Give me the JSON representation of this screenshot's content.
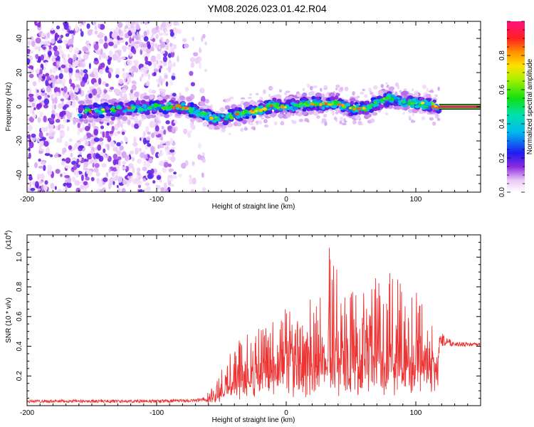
{
  "chart_data": [
    {
      "type": "heatmap",
      "title": "YM08.2026.023.01.42.R04",
      "xlabel": "Height of straight line (km)",
      "ylabel": "Frequency (Hz)",
      "xlim": [
        -200,
        150
      ],
      "ylim": [
        -50,
        50
      ],
      "xticks": [
        -200,
        -100,
        0,
        100
      ],
      "yticks": [
        -40,
        -20,
        0,
        20,
        40
      ],
      "colorbar": {
        "label": "Normalized spectral amplitude",
        "range": [
          0,
          1
        ],
        "ticks": [
          "0.0",
          "0.2",
          "0.4",
          "0.6",
          "0.8"
        ],
        "tick_values": [
          0.0,
          0.2,
          0.4,
          0.6,
          0.8
        ]
      },
      "ridge": {
        "description_points_x": [
          -160,
          -140,
          -120,
          -100,
          -80,
          -65,
          -55,
          -45,
          -35,
          -20,
          -10,
          0,
          10,
          20,
          30,
          40,
          50,
          60,
          70,
          80,
          90,
          100,
          110,
          118,
          150
        ],
        "description_points_y": [
          -3,
          -2,
          -1,
          0,
          0,
          -4,
          -7,
          -6,
          -4,
          -2,
          1,
          0,
          1,
          2,
          1,
          2,
          -1,
          -1,
          2,
          5,
          3,
          2,
          1,
          0,
          0
        ]
      },
      "noise_region_x": [
        -200,
        -62
      ]
    },
    {
      "type": "line",
      "title": "",
      "xlabel": "Height of straight line (km)",
      "ylabel": "SNR (10 * v/v)",
      "yscale_label": "(x10",
      "yscale_exp": "4",
      "yscale_close": ")",
      "xlim": [
        -200,
        150
      ],
      "ylim": [
        0,
        1.15
      ],
      "xticks": [
        -200,
        -100,
        0,
        100
      ],
      "yticks": [
        0.2,
        0.4,
        0.6,
        0.8,
        1.0
      ],
      "ytick_labels": [
        "0.2",
        "0.4",
        "0.6",
        "0.8",
        "1.0"
      ],
      "series": [
        {
          "name": "SNR",
          "color": "#ee3333",
          "envelope_x": [
            -200,
            -100,
            -70,
            -62,
            -55,
            -45,
            -35,
            -25,
            -15,
            -5,
            5,
            15,
            25,
            35,
            45,
            55,
            65,
            75,
            85,
            95,
            105,
            112,
            118,
            130,
            150
          ],
          "envelope_base": [
            0.02,
            0.02,
            0.025,
            0.03,
            0.08,
            0.12,
            0.15,
            0.18,
            0.2,
            0.23,
            0.25,
            0.26,
            0.28,
            0.3,
            0.3,
            0.3,
            0.3,
            0.3,
            0.3,
            0.3,
            0.3,
            0.3,
            0.4,
            0.4,
            0.4
          ],
          "envelope_peak": [
            0.04,
            0.04,
            0.045,
            0.06,
            0.2,
            0.35,
            0.45,
            0.55,
            0.6,
            0.65,
            0.7,
            0.75,
            0.95,
            1.1,
            0.9,
            0.85,
            0.8,
            0.85,
            0.9,
            0.8,
            0.75,
            0.7,
            0.5,
            0.43,
            0.42
          ]
        }
      ]
    }
  ]
}
